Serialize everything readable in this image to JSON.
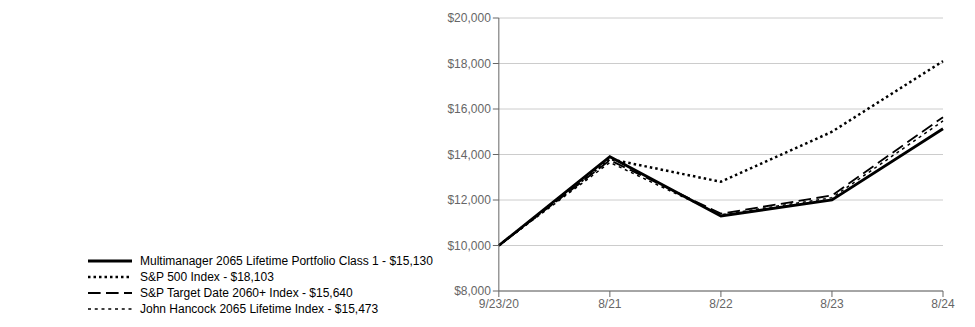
{
  "chart_data": {
    "type": "line",
    "categories": [
      "9/23/20",
      "8/21",
      "8/22",
      "8/23",
      "8/24"
    ],
    "series": [
      {
        "name": "Multimanager 2065 Lifetime Portfolio Class 1 - $15,130",
        "color": "#000000",
        "line_style": "solid",
        "values": [
          10000,
          13900,
          11300,
          12000,
          15130
        ]
      },
      {
        "name": "S&P 500 Index - $18,103",
        "color": "#000000",
        "line_style": "heavy_dot",
        "values": [
          10000,
          13800,
          12800,
          15000,
          18103
        ]
      },
      {
        "name": "S&P Target Date 2060+ Index - $15,640",
        "color": "#000000",
        "line_style": "long_dash",
        "values": [
          10000,
          13750,
          11400,
          12200,
          15640
        ]
      },
      {
        "name": "John Hancock 2065 Lifetime Index - $15,473",
        "color": "#000000",
        "line_style": "small_dot",
        "values": [
          10000,
          13650,
          11350,
          12100,
          15473
        ]
      }
    ],
    "ylim": [
      8000,
      20000
    ],
    "yticks": [
      {
        "value": 8000,
        "label": "$8,000"
      },
      {
        "value": 10000,
        "label": "$10,000"
      },
      {
        "value": 12000,
        "label": "$12,000"
      },
      {
        "value": 14000,
        "label": "$14,000"
      },
      {
        "value": 16000,
        "label": "$16,000"
      },
      {
        "value": 18000,
        "label": "$18,000"
      },
      {
        "value": 20000,
        "label": "$20,000"
      }
    ],
    "grid": true,
    "legend": "bottom"
  }
}
